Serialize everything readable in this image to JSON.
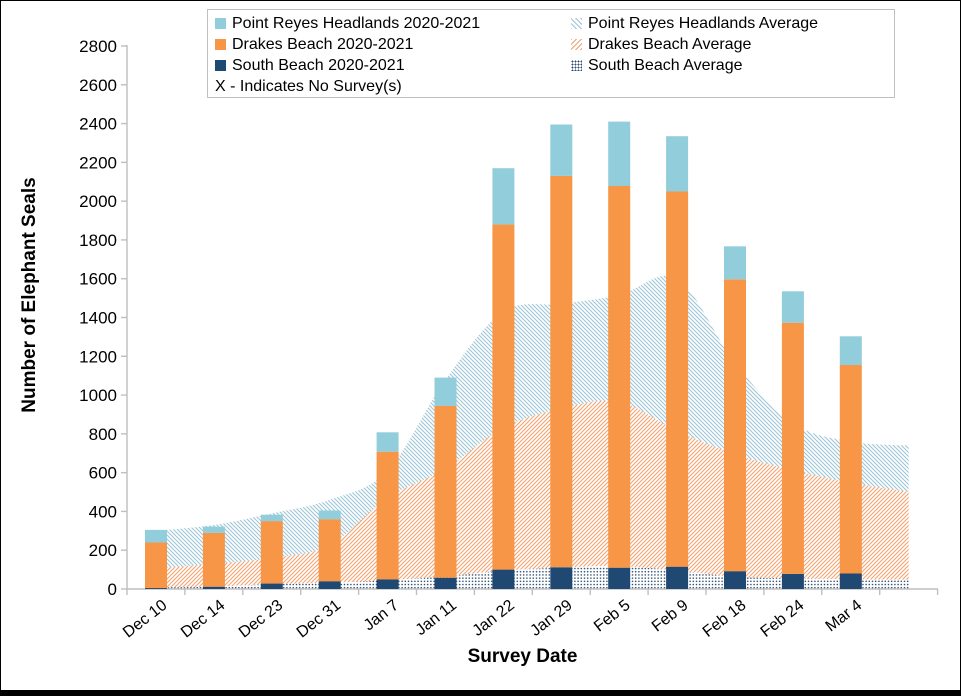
{
  "colors": {
    "prh": "#92CDDC",
    "db": "#F79646",
    "sb": "#1F4973",
    "prh_hatch": "#9CC6D6",
    "db_hatch": "#F2A370",
    "sb_dot": "#2B4B6F",
    "axis": "#BFBFBF",
    "text": "#000000",
    "legend_border": "#C0C0C0",
    "window_edge": "#000000"
  },
  "legend": {
    "items": [
      {
        "label": "Point Reyes Headlands 2020-2021",
        "swatch": "prh-solid"
      },
      {
        "label": "Point Reyes Headlands Average",
        "swatch": "prh-hatch"
      },
      {
        "label": "Drakes Beach 2020-2021",
        "swatch": "db-solid"
      },
      {
        "label": "Drakes Beach Average",
        "swatch": "db-hatch"
      },
      {
        "label": "South Beach 2020-2021",
        "swatch": "sb-solid"
      },
      {
        "label": "South Beach Average",
        "swatch": "sb-dots"
      },
      {
        "label": "X - Indicates No Survey(s)",
        "swatch": "none"
      }
    ]
  },
  "chart_data": {
    "type": "bar",
    "subtype": "stacked-bars-with-stacked-average-areas",
    "title": "",
    "xlabel": "Survey Date",
    "ylabel": "Number of Elephant Seals",
    "ylim": [
      0,
      2800
    ],
    "ytick_step": 200,
    "ytick_labels": [
      0,
      200,
      400,
      600,
      800,
      1000,
      1200,
      1400,
      1600,
      1800,
      2000,
      2200,
      2400,
      2600,
      2800
    ],
    "grid": false,
    "legend_position": "top",
    "categories": [
      "Dec 10",
      "Dec 14",
      "Dec 23",
      "Dec 31",
      "Jan 7",
      "Jan 11",
      "Jan 22",
      "Jan 29",
      "Feb 5",
      "Feb 9",
      "Feb 18",
      "Feb 24",
      "Mar 4"
    ],
    "bar_series": [
      {
        "name": "South Beach 2020-2021",
        "color_key": "sb",
        "values": [
          5,
          12,
          28,
          40,
          50,
          58,
          100,
          112,
          110,
          115,
          92,
          78,
          80
        ]
      },
      {
        "name": "Drakes Beach 2020-2021",
        "color_key": "db",
        "values": [
          235,
          278,
          322,
          320,
          658,
          886,
          1780,
          2018,
          1968,
          1935,
          1505,
          1295,
          1075
        ]
      },
      {
        "name": "Point Reyes Headlands 2020-2021",
        "color_key": "prh",
        "values": [
          65,
          32,
          33,
          45,
          100,
          146,
          290,
          265,
          332,
          285,
          170,
          162,
          148
        ]
      }
    ],
    "bar_totals": [
      305,
      322,
      383,
      405,
      808,
      1090,
      2170,
      2395,
      2410,
      2335,
      1767,
      1535,
      1303
    ],
    "area_series_note": "smoothed stacked areas; last value extends one unlabeled position past Mar 4",
    "area_series": [
      {
        "name": "South Beach Average",
        "pattern": "dots",
        "color_key": "sb_dot",
        "values": [
          8,
          12,
          25,
          32,
          45,
          65,
          95,
          110,
          118,
          95,
          63,
          55,
          50,
          48
        ]
      },
      {
        "name": "Drakes Beach Average",
        "pattern": "diag-up",
        "color_key": "db_hatch",
        "values": [
          97,
          118,
          135,
          193,
          425,
          555,
          735,
          820,
          847,
          720,
          632,
          557,
          498,
          452
        ]
      },
      {
        "name": "Point Reyes Headlands Average",
        "pattern": "diag-down",
        "color_key": "prh_hatch",
        "values": [
          195,
          200,
          230,
          235,
          140,
          460,
          600,
          540,
          550,
          785,
          470,
          243,
          212,
          240
        ]
      }
    ],
    "note": "X - Indicates No Survey(s)"
  }
}
